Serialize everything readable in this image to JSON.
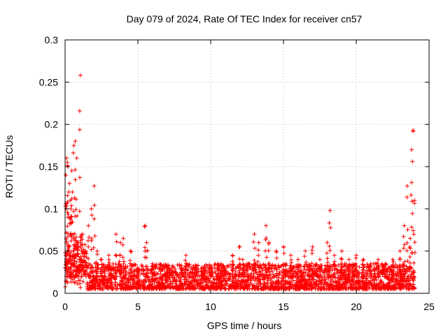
{
  "chart_data": {
    "type": "scatter",
    "title": "Day 079 of 2024, Rate Of TEC Index for receiver cn57",
    "xlabel": "GPS time / hours",
    "ylabel": "ROTI / TECUs",
    "xlim": [
      0,
      25
    ],
    "ylim": [
      0,
      0.3
    ],
    "x_ticks": [
      0,
      5,
      10,
      15,
      20,
      25
    ],
    "x_tick_labels": [
      "0",
      "5",
      "10",
      "15",
      "20",
      "25"
    ],
    "y_ticks": [
      0,
      0.05,
      0.1,
      0.15,
      0.2,
      0.25,
      0.3
    ],
    "y_tick_labels": [
      "0",
      "0.05",
      "0.1",
      "0.15",
      "0.2",
      "0.25",
      "0.3"
    ],
    "grid": true,
    "marker": "+",
    "color": "#ff0000",
    "series": [
      {
        "name": "ROTI",
        "x": [
          0.05,
          0.1,
          0.15,
          0.2,
          0.25,
          0.3,
          0.35,
          0.4,
          0.45,
          0.5,
          0.6,
          0.7,
          0.8,
          0.9,
          1.0,
          1.05,
          1.2,
          1.4,
          1.6,
          1.8,
          2.0,
          2.2,
          2.5,
          3.0,
          3.5,
          3.8,
          4.0,
          4.5,
          5.0,
          5.5,
          5.6,
          6.0,
          7.0,
          8.0,
          8.3,
          9.0,
          9.5,
          10.0,
          10.5,
          11.0,
          11.5,
          12.0,
          12.2,
          12.5,
          13.0,
          13.3,
          13.8,
          14.0,
          14.5,
          15.0,
          15.5,
          16.0,
          16.5,
          17.0,
          17.5,
          18.0,
          18.2,
          18.5,
          19.0,
          19.5,
          20.0,
          20.5,
          21.0,
          21.5,
          22.0,
          22.5,
          23.0,
          23.3,
          23.5,
          23.7,
          23.8,
          23.9,
          24.0
        ],
        "y": [
          0.14,
          0.16,
          0.155,
          0.15,
          0.12,
          0.13,
          0.11,
          0.1,
          0.145,
          0.12,
          0.175,
          0.18,
          0.16,
          0.06,
          0.04,
          0.258,
          0.07,
          0.05,
          0.08,
          0.1,
          0.127,
          0.05,
          0.04,
          0.045,
          0.07,
          0.06,
          0.065,
          0.05,
          0.03,
          0.08,
          0.06,
          0.035,
          0.03,
          0.03,
          0.045,
          0.03,
          0.03,
          0.025,
          0.035,
          0.03,
          0.045,
          0.055,
          0.04,
          0.035,
          0.07,
          0.06,
          0.08,
          0.06,
          0.05,
          0.055,
          0.045,
          0.04,
          0.05,
          0.055,
          0.04,
          0.06,
          0.098,
          0.045,
          0.05,
          0.04,
          0.045,
          0.04,
          0.035,
          0.04,
          0.035,
          0.04,
          0.05,
          0.08,
          0.127,
          0.065,
          0.17,
          0.193,
          0.11
        ]
      }
    ],
    "dense_band": {
      "note": "continuous dense cloud of '+' markers across full time range",
      "x_range": [
        0,
        24
      ],
      "y_range": [
        0.005,
        0.035
      ]
    }
  }
}
